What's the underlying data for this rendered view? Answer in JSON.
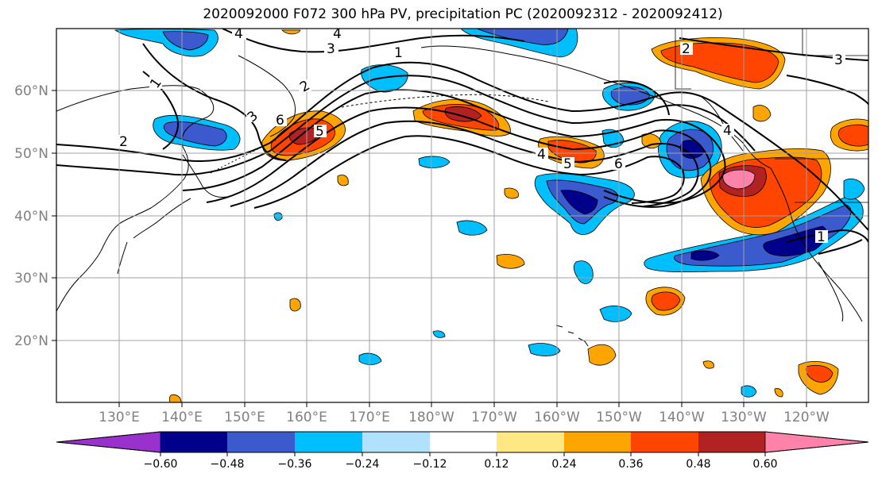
{
  "title": "2020092000 F072 300 hPa PV, precipitation PC (2020092312 - 2020092412)",
  "lat_labels": [
    "60°N",
    "50°N",
    "40°N",
    "30°N",
    "20°N"
  ],
  "lon_labels": [
    "130°E",
    "140°E",
    "150°E",
    "160°E",
    "170°E",
    "180°W",
    "170°W",
    "160°W",
    "150°W",
    "140°W",
    "130°W",
    "120°W"
  ],
  "colorbar": {
    "colors": [
      "#9932cc",
      "#00008b",
      "#3a5acd",
      "#00bfff",
      "#b0e2ff",
      "#ffffff",
      "#ffe884",
      "#ffa500",
      "#ff4500",
      "#b22222",
      "#ff82ab"
    ],
    "tick_labels": [
      "−0.60",
      "−0.48",
      "−0.36",
      "−0.24",
      "−0.12",
      "0.12",
      "0.24",
      "0.36",
      "0.48",
      "0.60"
    ]
  },
  "contour_labels": [
    "4",
    "4",
    "3",
    "1",
    "1",
    "2",
    "3",
    "2",
    "6",
    "5",
    "4",
    "5",
    "6",
    "4",
    "2",
    "3",
    "1"
  ]
}
